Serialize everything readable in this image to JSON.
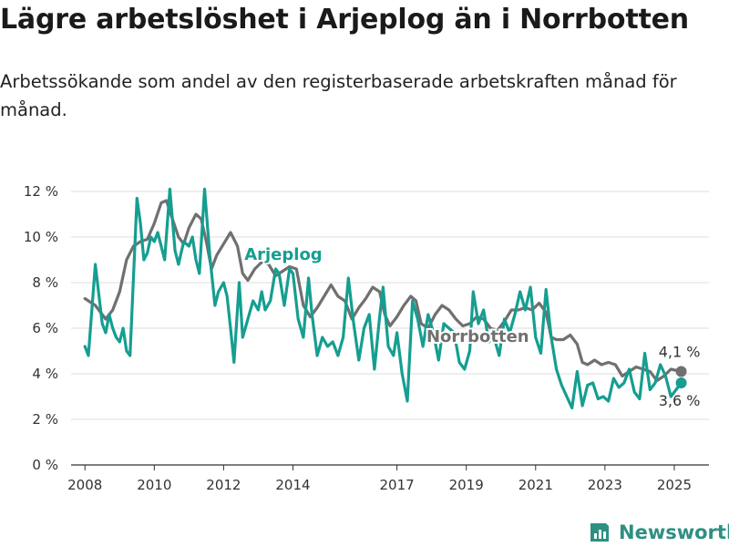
{
  "title": "Lägre arbetslöshet i Arjeplog än i Norrbotten",
  "subtitle": "Arbetssökande som andel av den registerbaserade arbetskraften månad för månad.",
  "brand": {
    "name": "Newsworthy",
    "icon": "chart-bars-icon",
    "color": "#2e8f82"
  },
  "colors": {
    "arjeplog": "#159e91",
    "norrbotten": "#707070",
    "grid": "#dddddd"
  },
  "chart_data": {
    "type": "line",
    "ylim": [
      0,
      12
    ],
    "xlim": [
      2007.6,
      2026.0
    ],
    "y_ticks": [
      {
        "value": 0,
        "label": "0 %"
      },
      {
        "value": 2,
        "label": "2 %"
      },
      {
        "value": 4,
        "label": "4 %"
      },
      {
        "value": 6,
        "label": "6 %"
      },
      {
        "value": 8,
        "label": "8 %"
      },
      {
        "value": 10,
        "label": "10 %"
      },
      {
        "value": 12,
        "label": "12 %"
      }
    ],
    "x_ticks": [
      {
        "value": 2008,
        "label": "2008"
      },
      {
        "value": 2010,
        "label": "2010"
      },
      {
        "value": 2012,
        "label": "2012"
      },
      {
        "value": 2014,
        "label": "2014"
      },
      {
        "value": 2017,
        "label": "2017"
      },
      {
        "value": 2019,
        "label": "2019"
      },
      {
        "value": 2021,
        "label": "2021"
      },
      {
        "value": 2023,
        "label": "2023"
      },
      {
        "value": 2025,
        "label": "2025"
      }
    ],
    "grid": true,
    "series": [
      {
        "name": "Norrbotten",
        "end_label": "4,1 %",
        "points": [
          [
            2008.0,
            7.3
          ],
          [
            2008.3,
            7.0
          ],
          [
            2008.6,
            6.4
          ],
          [
            2008.8,
            6.8
          ],
          [
            2009.0,
            7.6
          ],
          [
            2009.2,
            9.0
          ],
          [
            2009.4,
            9.6
          ],
          [
            2009.6,
            9.8
          ],
          [
            2009.8,
            9.9
          ],
          [
            2010.0,
            10.6
          ],
          [
            2010.2,
            11.5
          ],
          [
            2010.35,
            11.6
          ],
          [
            2010.5,
            10.9
          ],
          [
            2010.7,
            10.0
          ],
          [
            2010.85,
            9.7
          ],
          [
            2011.0,
            10.4
          ],
          [
            2011.2,
            11.0
          ],
          [
            2011.35,
            10.8
          ],
          [
            2011.5,
            9.8
          ],
          [
            2011.65,
            8.6
          ],
          [
            2011.8,
            9.2
          ],
          [
            2012.0,
            9.7
          ],
          [
            2012.2,
            10.2
          ],
          [
            2012.4,
            9.6
          ],
          [
            2012.55,
            8.4
          ],
          [
            2012.7,
            8.1
          ],
          [
            2012.9,
            8.6
          ],
          [
            2013.1,
            8.9
          ],
          [
            2013.3,
            8.8
          ],
          [
            2013.5,
            8.3
          ],
          [
            2013.7,
            8.5
          ],
          [
            2013.9,
            8.7
          ],
          [
            2014.1,
            8.6
          ],
          [
            2014.3,
            7.0
          ],
          [
            2014.5,
            6.5
          ],
          [
            2014.7,
            6.9
          ],
          [
            2014.9,
            7.4
          ],
          [
            2015.1,
            7.9
          ],
          [
            2015.3,
            7.4
          ],
          [
            2015.5,
            7.2
          ],
          [
            2015.7,
            6.4
          ],
          [
            2015.9,
            6.9
          ],
          [
            2016.1,
            7.3
          ],
          [
            2016.3,
            7.8
          ],
          [
            2016.5,
            7.6
          ],
          [
            2016.65,
            6.6
          ],
          [
            2016.8,
            6.1
          ],
          [
            2017.0,
            6.5
          ],
          [
            2017.2,
            7.0
          ],
          [
            2017.4,
            7.4
          ],
          [
            2017.55,
            7.2
          ],
          [
            2017.7,
            6.2
          ],
          [
            2017.9,
            6.0
          ],
          [
            2018.1,
            6.6
          ],
          [
            2018.3,
            7.0
          ],
          [
            2018.5,
            6.8
          ],
          [
            2018.7,
            6.4
          ],
          [
            2018.9,
            6.1
          ],
          [
            2019.1,
            6.2
          ],
          [
            2019.3,
            6.5
          ],
          [
            2019.5,
            6.4
          ],
          [
            2019.7,
            6.0
          ],
          [
            2019.9,
            5.9
          ],
          [
            2020.1,
            6.3
          ],
          [
            2020.3,
            6.8
          ],
          [
            2020.5,
            6.8
          ],
          [
            2020.7,
            6.9
          ],
          [
            2020.9,
            6.8
          ],
          [
            2021.1,
            7.1
          ],
          [
            2021.3,
            6.7
          ],
          [
            2021.45,
            5.6
          ],
          [
            2021.6,
            5.5
          ],
          [
            2021.8,
            5.5
          ],
          [
            2022.0,
            5.7
          ],
          [
            2022.2,
            5.3
          ],
          [
            2022.35,
            4.5
          ],
          [
            2022.5,
            4.4
          ],
          [
            2022.7,
            4.6
          ],
          [
            2022.9,
            4.4
          ],
          [
            2023.1,
            4.5
          ],
          [
            2023.3,
            4.4
          ],
          [
            2023.5,
            3.9
          ],
          [
            2023.7,
            4.1
          ],
          [
            2023.9,
            4.3
          ],
          [
            2024.1,
            4.2
          ],
          [
            2024.3,
            4.1
          ],
          [
            2024.5,
            3.7
          ],
          [
            2024.7,
            3.9
          ],
          [
            2024.9,
            4.2
          ],
          [
            2025.2,
            4.1
          ]
        ]
      },
      {
        "name": "Arjeplog",
        "end_label": "3,6 %",
        "points": [
          [
            2008.0,
            5.2
          ],
          [
            2008.1,
            4.8
          ],
          [
            2008.3,
            8.8
          ],
          [
            2008.5,
            6.2
          ],
          [
            2008.6,
            5.8
          ],
          [
            2008.7,
            6.6
          ],
          [
            2008.8,
            6.0
          ],
          [
            2008.9,
            5.6
          ],
          [
            2009.0,
            5.4
          ],
          [
            2009.1,
            6.0
          ],
          [
            2009.2,
            5.0
          ],
          [
            2009.3,
            4.8
          ],
          [
            2009.5,
            11.7
          ],
          [
            2009.6,
            10.6
          ],
          [
            2009.7,
            9.0
          ],
          [
            2009.8,
            9.3
          ],
          [
            2009.9,
            10.0
          ],
          [
            2010.0,
            9.8
          ],
          [
            2010.1,
            10.2
          ],
          [
            2010.2,
            9.6
          ],
          [
            2010.3,
            9.0
          ],
          [
            2010.45,
            12.1
          ],
          [
            2010.6,
            9.4
          ],
          [
            2010.7,
            8.8
          ],
          [
            2010.85,
            9.8
          ],
          [
            2011.0,
            9.6
          ],
          [
            2011.1,
            10.0
          ],
          [
            2011.2,
            9.0
          ],
          [
            2011.3,
            8.4
          ],
          [
            2011.45,
            12.1
          ],
          [
            2011.6,
            9.2
          ],
          [
            2011.75,
            7.0
          ],
          [
            2011.85,
            7.6
          ],
          [
            2012.0,
            8.0
          ],
          [
            2012.1,
            7.4
          ],
          [
            2012.2,
            6.0
          ],
          [
            2012.3,
            4.5
          ],
          [
            2012.45,
            8.0
          ],
          [
            2012.55,
            5.6
          ],
          [
            2012.7,
            6.4
          ],
          [
            2012.85,
            7.2
          ],
          [
            2013.0,
            6.8
          ],
          [
            2013.1,
            7.6
          ],
          [
            2013.2,
            6.8
          ],
          [
            2013.35,
            7.2
          ],
          [
            2013.5,
            8.6
          ],
          [
            2013.6,
            8.4
          ],
          [
            2013.75,
            7.0
          ],
          [
            2013.9,
            8.6
          ],
          [
            2014.0,
            8.4
          ],
          [
            2014.15,
            6.4
          ],
          [
            2014.3,
            5.6
          ],
          [
            2014.45,
            8.2
          ],
          [
            2014.55,
            6.6
          ],
          [
            2014.7,
            4.8
          ],
          [
            2014.85,
            5.6
          ],
          [
            2015.0,
            5.2
          ],
          [
            2015.15,
            5.4
          ],
          [
            2015.3,
            4.8
          ],
          [
            2015.45,
            5.6
          ],
          [
            2015.6,
            8.2
          ],
          [
            2015.75,
            6.2
          ],
          [
            2015.9,
            4.6
          ],
          [
            2016.05,
            6.0
          ],
          [
            2016.2,
            6.6
          ],
          [
            2016.35,
            4.2
          ],
          [
            2016.5,
            6.5
          ],
          [
            2016.6,
            7.8
          ],
          [
            2016.75,
            5.2
          ],
          [
            2016.9,
            4.8
          ],
          [
            2017.0,
            5.8
          ],
          [
            2017.15,
            4.0
          ],
          [
            2017.3,
            2.8
          ],
          [
            2017.45,
            7.2
          ],
          [
            2017.6,
            6.4
          ],
          [
            2017.75,
            5.2
          ],
          [
            2017.9,
            6.6
          ],
          [
            2018.05,
            5.8
          ],
          [
            2018.2,
            4.6
          ],
          [
            2018.35,
            6.2
          ],
          [
            2018.5,
            6.0
          ],
          [
            2018.65,
            5.8
          ],
          [
            2018.8,
            4.5
          ],
          [
            2018.95,
            4.2
          ],
          [
            2019.1,
            5.0
          ],
          [
            2019.2,
            7.6
          ],
          [
            2019.35,
            6.2
          ],
          [
            2019.5,
            6.8
          ],
          [
            2019.65,
            5.4
          ],
          [
            2019.8,
            5.6
          ],
          [
            2019.95,
            4.8
          ],
          [
            2020.1,
            6.4
          ],
          [
            2020.25,
            5.8
          ],
          [
            2020.4,
            6.6
          ],
          [
            2020.55,
            7.6
          ],
          [
            2020.7,
            6.8
          ],
          [
            2020.85,
            7.8
          ],
          [
            2021.0,
            5.6
          ],
          [
            2021.15,
            4.9
          ],
          [
            2021.3,
            7.7
          ],
          [
            2021.45,
            5.6
          ],
          [
            2021.6,
            4.2
          ],
          [
            2021.75,
            3.5
          ],
          [
            2021.9,
            3.0
          ],
          [
            2022.05,
            2.5
          ],
          [
            2022.2,
            4.1
          ],
          [
            2022.35,
            2.6
          ],
          [
            2022.5,
            3.5
          ],
          [
            2022.65,
            3.6
          ],
          [
            2022.8,
            2.9
          ],
          [
            2022.95,
            3.0
          ],
          [
            2023.1,
            2.8
          ],
          [
            2023.25,
            3.8
          ],
          [
            2023.4,
            3.4
          ],
          [
            2023.55,
            3.6
          ],
          [
            2023.7,
            4.2
          ],
          [
            2023.85,
            3.2
          ],
          [
            2024.0,
            2.9
          ],
          [
            2024.15,
            4.9
          ],
          [
            2024.3,
            3.3
          ],
          [
            2024.45,
            3.6
          ],
          [
            2024.6,
            4.4
          ],
          [
            2024.75,
            3.9
          ],
          [
            2024.9,
            3.0
          ],
          [
            2025.2,
            3.6
          ]
        ]
      }
    ]
  }
}
